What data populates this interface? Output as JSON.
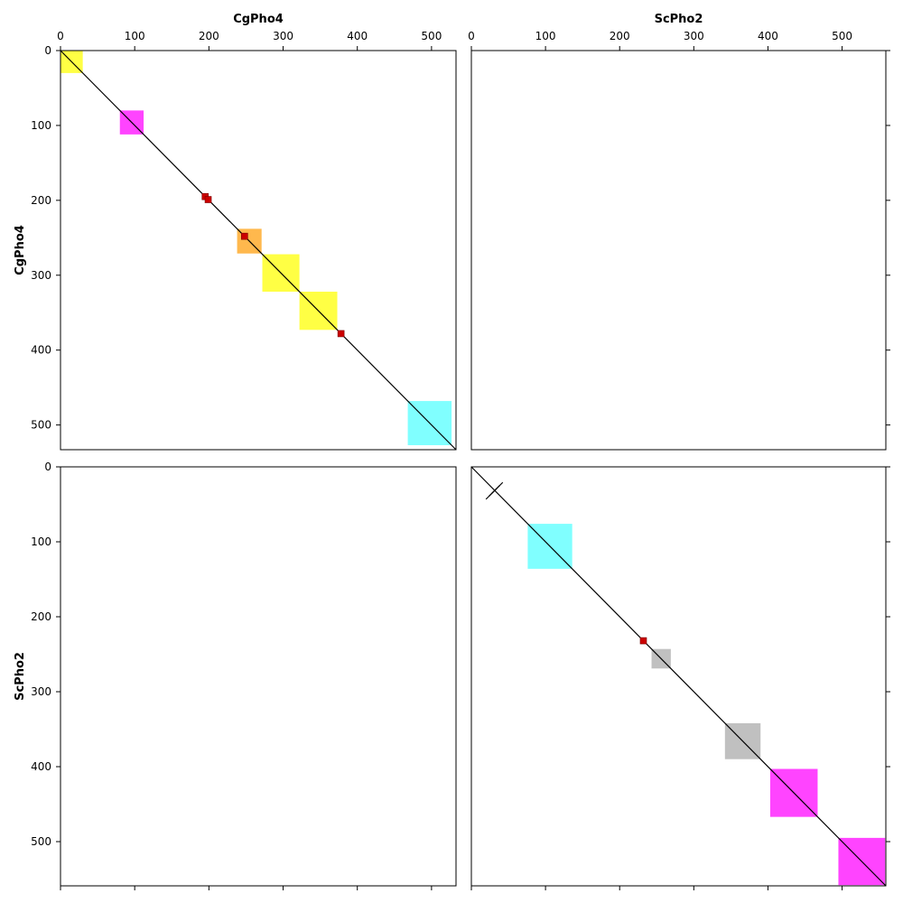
{
  "chart_data": {
    "type": "dot-plot-matrix",
    "sequences": [
      {
        "name": "CgPho4",
        "length": 533
      },
      {
        "name": "ScPho2",
        "length": 559
      }
    ],
    "panels": [
      {
        "row": "CgPho4",
        "col": "CgPho4",
        "diagonal": true,
        "blocks": [
          {
            "start": 0,
            "end": 30,
            "color": "#ffff44"
          },
          {
            "start": 80,
            "end": 112,
            "color": "#ff44ff"
          },
          {
            "start": 238,
            "end": 271,
            "color": "#ffb84d"
          },
          {
            "start": 272,
            "end": 322,
            "color": "#ffff44"
          },
          {
            "start": 322,
            "end": 373,
            "color": "#ffff44"
          },
          {
            "start": 468,
            "end": 527,
            "color": "#80ffff"
          }
        ],
        "marks": [
          {
            "x": 195,
            "y": 195,
            "color": "#cc0000"
          },
          {
            "x": 199,
            "y": 199,
            "color": "#cc0000"
          },
          {
            "x": 248,
            "y": 248,
            "color": "#cc0000"
          },
          {
            "x": 378,
            "y": 378,
            "color": "#cc0000"
          }
        ],
        "repeat_ticks": []
      },
      {
        "row": "CgPho4",
        "col": "ScPho2",
        "diagonal": false,
        "blocks": [],
        "marks": [],
        "repeat_ticks": []
      },
      {
        "row": "ScPho2",
        "col": "CgPho4",
        "diagonal": false,
        "blocks": [],
        "marks": [],
        "repeat_ticks": []
      },
      {
        "row": "ScPho2",
        "col": "ScPho2",
        "diagonal": true,
        "blocks": [
          {
            "start": 76,
            "end": 136,
            "color": "#80ffff"
          },
          {
            "start": 243,
            "end": 269,
            "color": "#c0c0c0"
          },
          {
            "start": 342,
            "end": 390,
            "color": "#c0c0c0"
          },
          {
            "start": 403,
            "end": 467,
            "color": "#ff44ff"
          },
          {
            "start": 495,
            "end": 558,
            "color": "#ff44ff"
          }
        ],
        "marks": [
          {
            "x": 232,
            "y": 232,
            "color": "#cc0000"
          }
        ],
        "repeat_ticks": [
          {
            "x": 27,
            "y": 36
          },
          {
            "x": 31,
            "y": 32
          },
          {
            "x": 35,
            "y": 28
          }
        ]
      }
    ],
    "axis_ticks": {
      "CgPho4": [
        0,
        100,
        200,
        300,
        400,
        500
      ],
      "ScPho2": [
        0,
        100,
        200,
        300,
        400,
        500
      ]
    },
    "tick_labels": {
      "top": {
        "CgPho4": [
          "0",
          "100",
          "200",
          "300",
          "400",
          "500"
        ],
        "ScPho2": [
          "0",
          "100",
          "200",
          "300",
          "400",
          "500"
        ]
      },
      "left": {
        "CgPho4": [
          "0",
          "100",
          "200",
          "300",
          "400",
          "500"
        ],
        "ScPho2": [
          "0",
          "100",
          "200",
          "300",
          "400",
          "500"
        ]
      }
    },
    "grid": false,
    "colors": {
      "axis": "#000000",
      "diagonal_line": "#000000"
    }
  }
}
